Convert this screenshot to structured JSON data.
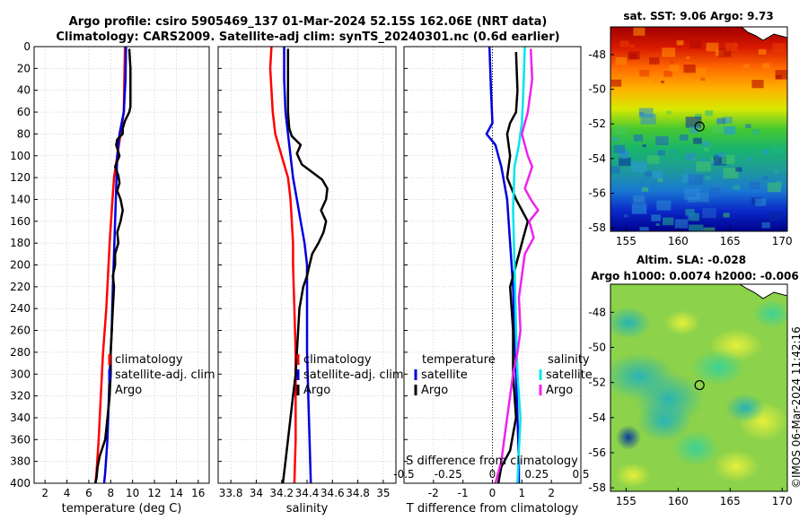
{
  "figure": {
    "title_line1": "Argo profile: csiro 5905469_137 01-Mar-2024 52.15S 162.06E (NRT data)",
    "title_line2": "Climatology: CARS2009. Satellite-adj clim: synTS_20240301.nc (0.6d earlier)",
    "credit": "©IMOS 06-Mar-2024 11:42:16"
  },
  "colors": {
    "climatology": "#ff0000",
    "satellite": "#0000dd",
    "argo": "#000000",
    "salinity_satellite": "#00e5ee",
    "salinity_argo": "#ee22ee"
  },
  "chart_data": [
    {
      "type": "line",
      "id": "temperature",
      "xlabel": "temperature (deg C)",
      "ylabel": "depth",
      "xlim": [
        1,
        17
      ],
      "ylim": [
        400,
        0
      ],
      "xticks": [
        "2",
        "4",
        "6",
        "8",
        "10",
        "12",
        "14",
        "16"
      ],
      "yticks": [
        "0",
        "20",
        "40",
        "60",
        "80",
        "100",
        "120",
        "140",
        "160",
        "180",
        "200",
        "220",
        "240",
        "260",
        "280",
        "300",
        "320",
        "340",
        "360",
        "380",
        "400"
      ],
      "legend": [
        "climatology",
        "satellite-adj. clim",
        "Argo"
      ],
      "series": [
        {
          "name": "climatology",
          "key": "climatology",
          "points": [
            [
              9.3,
              0
            ],
            [
              9.25,
              30
            ],
            [
              9.2,
              60
            ],
            [
              8.9,
              80
            ],
            [
              8.6,
              100
            ],
            [
              8.3,
              120
            ],
            [
              8.1,
              150
            ],
            [
              7.9,
              180
            ],
            [
              7.8,
              200
            ],
            [
              7.6,
              240
            ],
            [
              7.3,
              280
            ],
            [
              7.1,
              320
            ],
            [
              6.9,
              360
            ],
            [
              6.7,
              390
            ],
            [
              6.6,
              400
            ]
          ]
        },
        {
          "name": "satellite-adj. clim",
          "key": "satellite",
          "points": [
            [
              9.4,
              0
            ],
            [
              9.35,
              30
            ],
            [
              9.2,
              60
            ],
            [
              8.8,
              80
            ],
            [
              8.6,
              100
            ],
            [
              8.5,
              130
            ],
            [
              8.4,
              160
            ],
            [
              8.3,
              190
            ],
            [
              8.2,
              220
            ],
            [
              8.1,
              260
            ],
            [
              7.9,
              300
            ],
            [
              7.8,
              330
            ],
            [
              7.7,
              360
            ],
            [
              7.5,
              390
            ],
            [
              7.4,
              400
            ]
          ]
        },
        {
          "name": "Argo",
          "key": "argo",
          "points": [
            [
              9.7,
              2
            ],
            [
              9.8,
              20
            ],
            [
              9.8,
              55
            ],
            [
              9.7,
              60
            ],
            [
              9.3,
              68
            ],
            [
              9.1,
              75
            ],
            [
              9.1,
              80
            ],
            [
              8.6,
              85
            ],
            [
              8.5,
              90
            ],
            [
              8.8,
              100
            ],
            [
              8.6,
              105
            ],
            [
              8.4,
              110
            ],
            [
              8.7,
              118
            ],
            [
              8.8,
              125
            ],
            [
              8.6,
              132
            ],
            [
              8.9,
              140
            ],
            [
              9.1,
              150
            ],
            [
              8.9,
              160
            ],
            [
              8.6,
              170
            ],
            [
              8.7,
              180
            ],
            [
              8.4,
              190
            ],
            [
              8.4,
              200
            ],
            [
              8.2,
              210
            ],
            [
              8.3,
              220
            ],
            [
              8.2,
              240
            ],
            [
              8.1,
              260
            ],
            [
              8.0,
              280
            ],
            [
              8.0,
              300
            ],
            [
              7.9,
              320
            ],
            [
              7.7,
              340
            ],
            [
              7.5,
              360
            ],
            [
              7.0,
              375
            ],
            [
              6.8,
              385
            ],
            [
              6.7,
              395
            ],
            [
              6.6,
              400
            ]
          ]
        }
      ]
    },
    {
      "type": "line",
      "id": "salinity",
      "xlabel": "salinity",
      "xlim": [
        33.7,
        35.1
      ],
      "ylim": [
        400,
        0
      ],
      "xticks": [
        "33.8",
        "34",
        "34.2",
        "34.4",
        "34.6",
        "34.8",
        "35"
      ],
      "legend": [
        "climatology",
        "satellite-adj. clim",
        "Argo"
      ],
      "series": [
        {
          "name": "climatology",
          "key": "climatology",
          "points": [
            [
              34.12,
              0
            ],
            [
              34.11,
              20
            ],
            [
              34.12,
              40
            ],
            [
              34.13,
              60
            ],
            [
              34.15,
              80
            ],
            [
              34.2,
              100
            ],
            [
              34.25,
              120
            ],
            [
              34.27,
              140
            ],
            [
              34.28,
              160
            ],
            [
              34.29,
              180
            ],
            [
              34.29,
              200
            ],
            [
              34.3,
              240
            ],
            [
              34.31,
              280
            ],
            [
              34.31,
              320
            ],
            [
              34.31,
              360
            ],
            [
              34.3,
              400
            ]
          ]
        },
        {
          "name": "satellite-adj. clim",
          "key": "satellite",
          "points": [
            [
              34.22,
              0
            ],
            [
              34.22,
              30
            ],
            [
              34.23,
              60
            ],
            [
              34.25,
              80
            ],
            [
              34.27,
              100
            ],
            [
              34.29,
              120
            ],
            [
              34.32,
              140
            ],
            [
              34.35,
              160
            ],
            [
              34.38,
              180
            ],
            [
              34.4,
              200
            ],
            [
              34.4,
              240
            ],
            [
              34.4,
              280
            ],
            [
              34.41,
              320
            ],
            [
              34.42,
              360
            ],
            [
              34.43,
              400
            ]
          ]
        },
        {
          "name": "Argo",
          "key": "argo",
          "points": [
            [
              34.25,
              2
            ],
            [
              34.25,
              60
            ],
            [
              34.26,
              75
            ],
            [
              34.28,
              82
            ],
            [
              34.35,
              90
            ],
            [
              34.32,
              98
            ],
            [
              34.36,
              108
            ],
            [
              34.44,
              115
            ],
            [
              34.52,
              122
            ],
            [
              34.56,
              130
            ],
            [
              34.55,
              140
            ],
            [
              34.51,
              150
            ],
            [
              34.55,
              160
            ],
            [
              34.53,
              170
            ],
            [
              34.49,
              180
            ],
            [
              34.44,
              190
            ],
            [
              34.42,
              200
            ],
            [
              34.4,
              210
            ],
            [
              34.37,
              220
            ],
            [
              34.34,
              240
            ],
            [
              34.33,
              260
            ],
            [
              34.32,
              280
            ],
            [
              34.31,
              300
            ],
            [
              34.29,
              320
            ],
            [
              34.27,
              340
            ],
            [
              34.25,
              360
            ],
            [
              34.23,
              380
            ],
            [
              34.21,
              400
            ]
          ]
        }
      ]
    },
    {
      "type": "line",
      "id": "difference",
      "xlabel": "T difference from climatology",
      "xlabel_top": "S difference from climatology",
      "xlim": [
        -3,
        3
      ],
      "ylim": [
        400,
        0
      ],
      "xticks": [
        "-2",
        "-1",
        "0",
        "1",
        "2"
      ],
      "xticks_salinity": [
        "-0.5",
        "-0.25",
        "0",
        "0.25",
        "0.5"
      ],
      "legend_temperature_title": "temperature",
      "legend_salinity_title": "salinity",
      "legend_temperature": [
        "satellite",
        "Argo"
      ],
      "legend_salinity": [
        "satellite",
        "Argo"
      ],
      "series": [
        {
          "name": "temperature satellite",
          "key": "satellite",
          "points": [
            [
              -0.1,
              0
            ],
            [
              -0.05,
              40
            ],
            [
              0.0,
              70
            ],
            [
              -0.2,
              80
            ],
            [
              0.1,
              90
            ],
            [
              0.3,
              110
            ],
            [
              0.5,
              140
            ],
            [
              0.6,
              180
            ],
            [
              0.7,
              220
            ],
            [
              0.75,
              260
            ],
            [
              0.8,
              300
            ],
            [
              0.85,
              340
            ],
            [
              0.9,
              380
            ],
            [
              0.9,
              400
            ]
          ]
        },
        {
          "name": "temperature Argo",
          "key": "argo",
          "points": [
            [
              0.8,
              5
            ],
            [
              0.85,
              40
            ],
            [
              0.8,
              60
            ],
            [
              0.6,
              70
            ],
            [
              0.5,
              80
            ],
            [
              0.6,
              100
            ],
            [
              0.5,
              120
            ],
            [
              0.8,
              140
            ],
            [
              1.2,
              160
            ],
            [
              1.0,
              180
            ],
            [
              0.8,
              200
            ],
            [
              0.6,
              220
            ],
            [
              0.7,
              260
            ],
            [
              0.7,
              300
            ],
            [
              0.8,
              340
            ],
            [
              0.6,
              370
            ],
            [
              0.3,
              385
            ],
            [
              0.2,
              400
            ]
          ]
        },
        {
          "name": "salinity satellite",
          "key": "salinity_satellite",
          "points": [
            [
              1.1,
              0
            ],
            [
              1.05,
              40
            ],
            [
              1.0,
              70
            ],
            [
              0.9,
              90
            ],
            [
              0.75,
              110
            ],
            [
              0.7,
              150
            ],
            [
              0.75,
              200
            ],
            [
              0.8,
              260
            ],
            [
              0.85,
              300
            ],
            [
              0.95,
              340
            ],
            [
              0.9,
              370
            ],
            [
              0.85,
              400
            ]
          ]
        },
        {
          "name": "salinity Argo",
          "key": "salinity_argo",
          "points": [
            [
              1.3,
              2
            ],
            [
              1.35,
              30
            ],
            [
              1.2,
              60
            ],
            [
              1.0,
              80
            ],
            [
              1.2,
              100
            ],
            [
              1.35,
              110
            ],
            [
              1.1,
              130
            ],
            [
              1.3,
              140
            ],
            [
              1.55,
              150
            ],
            [
              1.25,
              160
            ],
            [
              1.4,
              175
            ],
            [
              1.1,
              190
            ],
            [
              1.0,
              210
            ],
            [
              0.9,
              230
            ],
            [
              0.95,
              260
            ],
            [
              0.85,
              280
            ],
            [
              0.7,
              300
            ],
            [
              0.6,
              320
            ],
            [
              0.5,
              340
            ],
            [
              0.4,
              360
            ],
            [
              0.3,
              380
            ],
            [
              0.1,
              400
            ]
          ]
        }
      ]
    },
    {
      "type": "heatmap",
      "id": "sst_map",
      "title": "sat. SST: 9.06 Argo: 9.73",
      "xticks": [
        "155",
        "160",
        "165",
        "170"
      ],
      "yticks": [
        "-48",
        "-50",
        "-52",
        "-54",
        "-56",
        "-58"
      ],
      "xlim": [
        153.5,
        170.5
      ],
      "ylim": [
        -58.2,
        -46.4
      ],
      "marker": {
        "lon": 162.06,
        "lat": -52.15
      }
    },
    {
      "type": "heatmap",
      "id": "sla_map",
      "title_line1": "Altim. SLA: -0.028",
      "title_line2": "Argo h1000: 0.0074 h2000: -0.006",
      "xticks": [
        "155",
        "160",
        "165",
        "170"
      ],
      "yticks": [
        "-48",
        "-50",
        "-52",
        "-54",
        "-56",
        "-58"
      ],
      "xlim": [
        153.5,
        170.5
      ],
      "ylim": [
        -58.2,
        -46.4
      ],
      "marker": {
        "lon": 162.06,
        "lat": -52.15
      }
    }
  ]
}
